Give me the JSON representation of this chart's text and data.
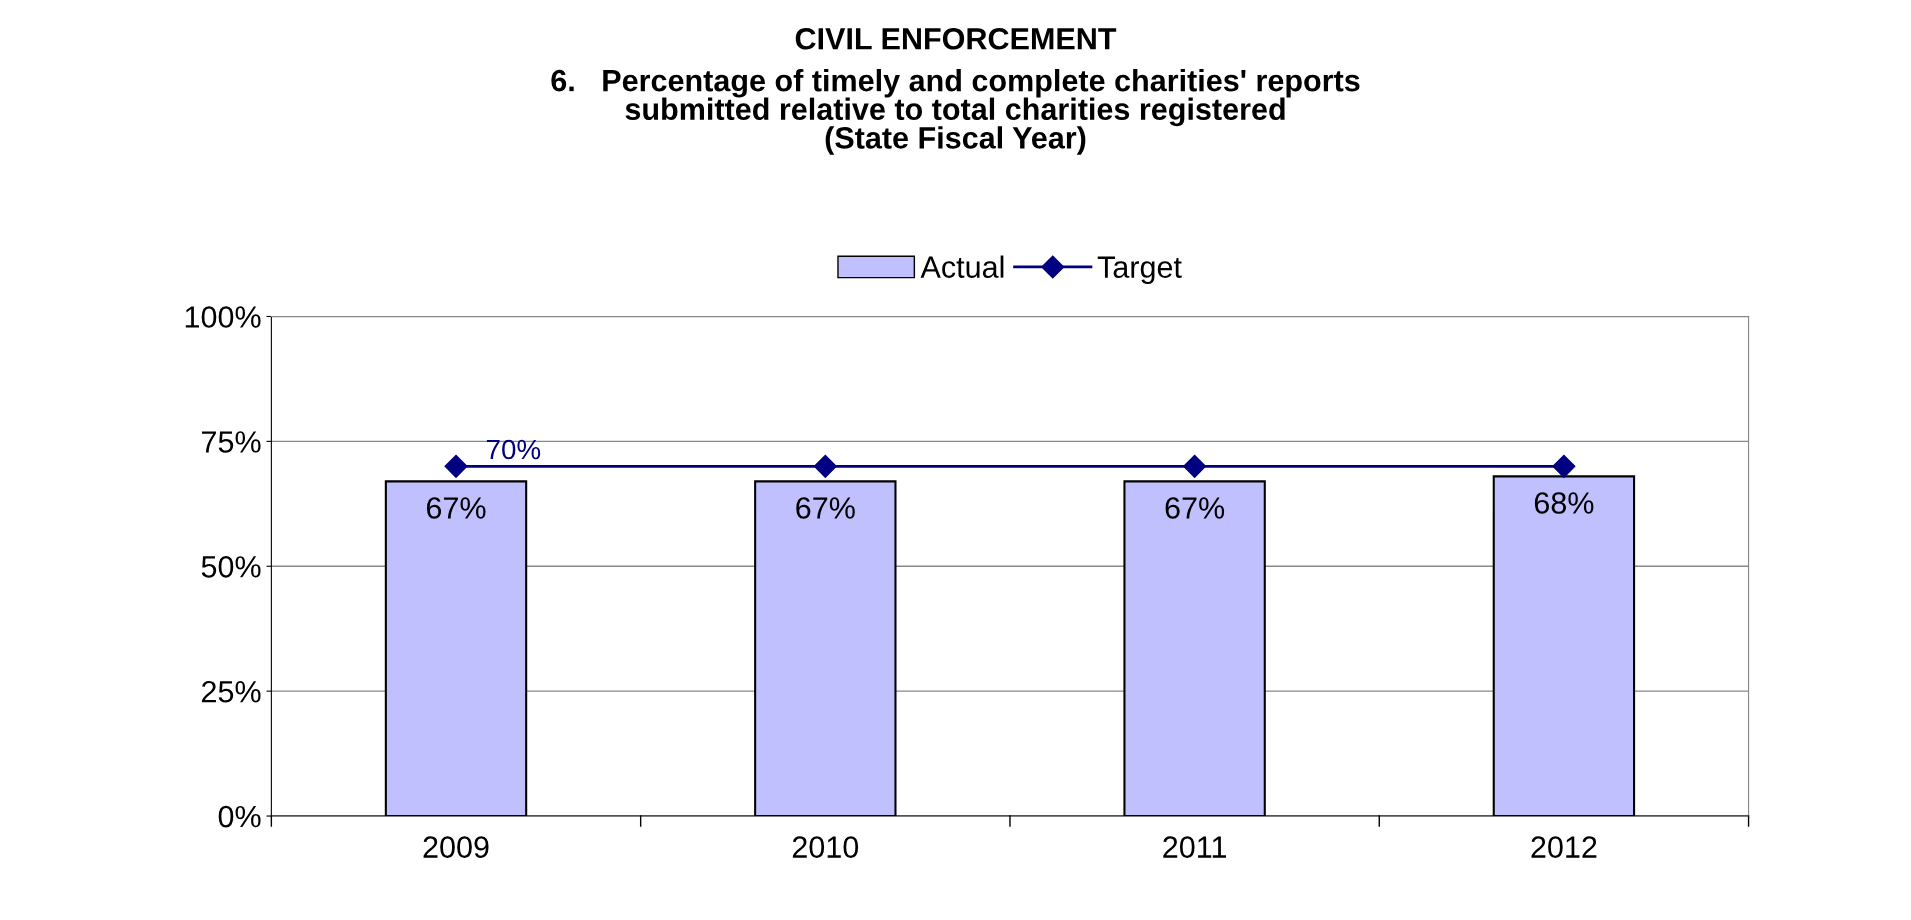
{
  "chart_data": {
    "type": "bar",
    "title": "CIVIL ENFORCEMENT",
    "subtitle": "6.   Percentage of timely and complete charities' reports\nsubmitted relative to total charities registered\n(State Fiscal Year)",
    "categories": [
      "2009",
      "2010",
      "2011",
      "2012"
    ],
    "series": [
      {
        "name": "Actual",
        "color": "#c0c0ff",
        "values": [
          67,
          67,
          67,
          68
        ],
        "value_labels": [
          "67%",
          "67%",
          "67%",
          "68%"
        ]
      },
      {
        "name": "Target",
        "type": "line",
        "color": "#000080",
        "values": [
          70,
          70,
          70,
          70
        ],
        "value_labels": [
          "70%",
          null,
          null,
          null
        ],
        "marker": "diamond",
        "line_style": "solid"
      }
    ],
    "ylim": [
      0,
      100
    ],
    "yticks": [
      {
        "value": 0,
        "label": "0%"
      },
      {
        "value": 25,
        "label": "25%"
      },
      {
        "value": 50,
        "label": "50%"
      },
      {
        "value": 75,
        "label": "75%"
      },
      {
        "value": 100,
        "label": "100%"
      }
    ],
    "grid": "y",
    "legend": "top"
  }
}
